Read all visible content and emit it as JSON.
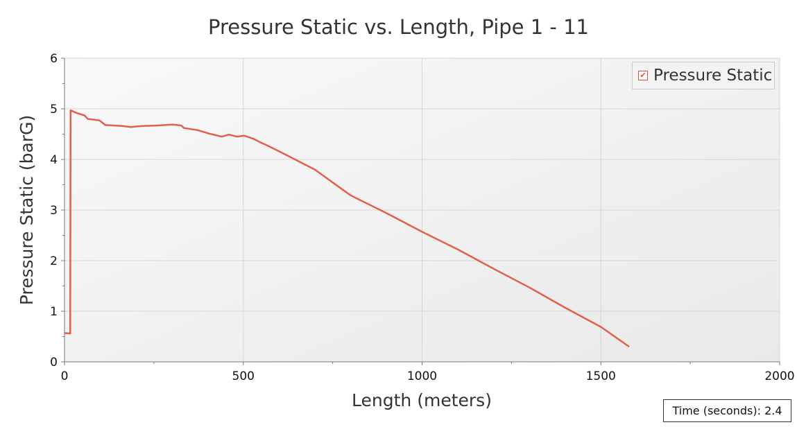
{
  "chart_data": {
    "type": "line",
    "title": "Pressure Static vs. Length, Pipe 1 - 11",
    "xlabel": "Length (meters)",
    "ylabel": "Pressure Static (barG)",
    "xlim": [
      0,
      2000
    ],
    "ylim": [
      0,
      6
    ],
    "xticks": [
      "0",
      "500",
      "1000",
      "1500",
      "2000"
    ],
    "yticks": [
      "0",
      "1",
      "2",
      "3",
      "4",
      "5",
      "6"
    ],
    "grid": true,
    "legend": "top-right",
    "series": [
      {
        "name": "Pressure Static",
        "color": "#e0604a",
        "x": [
          0,
          16,
          17,
          33,
          56,
          65,
          98,
          114,
          162,
          185,
          217,
          259,
          301,
          327,
          334,
          372,
          405,
          440,
          460,
          482,
          502,
          528,
          547,
          566,
          600,
          700,
          800,
          900,
          1000,
          1100,
          1200,
          1300,
          1400,
          1500,
          1579
        ],
        "y": [
          0.57,
          0.56,
          4.97,
          4.92,
          4.87,
          4.8,
          4.77,
          4.68,
          4.66,
          4.64,
          4.66,
          4.67,
          4.69,
          4.67,
          4.62,
          4.58,
          4.51,
          4.45,
          4.49,
          4.45,
          4.47,
          4.41,
          4.34,
          4.28,
          4.16,
          3.8,
          3.29,
          2.94,
          2.57,
          2.22,
          1.84,
          1.47,
          1.07,
          0.69,
          0.3
        ]
      }
    ]
  },
  "footer": {
    "time_label": "Time (seconds): 2.4"
  }
}
